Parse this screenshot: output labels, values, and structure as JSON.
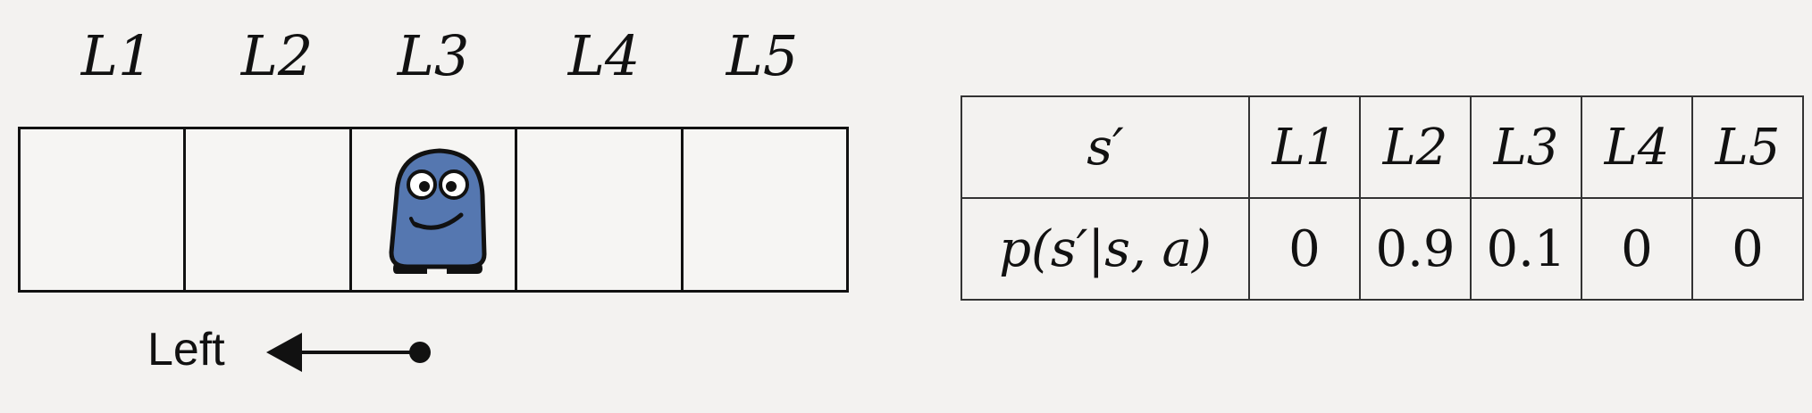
{
  "cells": [
    "L1",
    "L2",
    "L3",
    "L4",
    "L5"
  ],
  "robot_position": 3,
  "action": {
    "label": "Left",
    "icon": "arrow-left-icon"
  },
  "table": {
    "row1_header": "s′",
    "row2_header": "p(s′|s, a)",
    "states": [
      "L1",
      "L2",
      "L3",
      "L4",
      "L5"
    ],
    "probabilities": [
      "0",
      "0.9",
      "0.1",
      "0",
      "0"
    ]
  },
  "colors": {
    "robot_body": "#5577b0",
    "line": "#111111"
  }
}
